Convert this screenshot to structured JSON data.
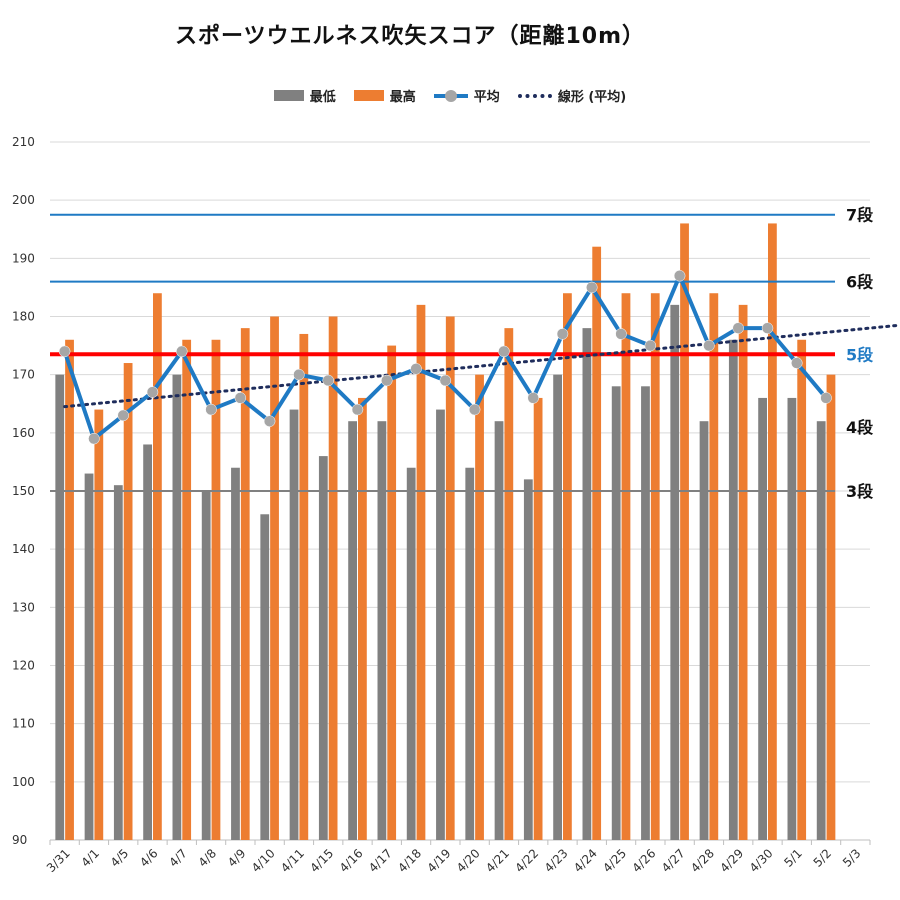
{
  "chart_data": {
    "type": "bar",
    "title": "スポーツウエルネス吹矢スコア（距離10m）",
    "categories": [
      "3/31",
      "4/1",
      "4/5",
      "4/6",
      "4/7",
      "4/8",
      "4/9",
      "4/10",
      "4/11",
      "4/15",
      "4/16",
      "4/17",
      "4/18",
      "4/19",
      "4/20",
      "4/21",
      "4/22",
      "4/23",
      "4/24",
      "4/25",
      "4/26",
      "4/27",
      "4/28",
      "4/29",
      "4/30",
      "5/1",
      "5/2",
      "5/3"
    ],
    "series": [
      {
        "name": "最低",
        "type": "bar",
        "color": "#808080",
        "values": [
          170,
          153,
          151,
          158,
          170,
          150,
          154,
          146,
          164,
          156,
          162,
          162,
          154,
          164,
          154,
          162,
          152,
          170,
          178,
          168,
          168,
          182,
          162,
          176,
          166,
          166,
          162,
          null
        ]
      },
      {
        "name": "最高",
        "type": "bar",
        "color": "#ed7d31",
        "values": [
          176,
          164,
          172,
          184,
          176,
          176,
          178,
          180,
          177,
          180,
          166,
          175,
          182,
          180,
          170,
          178,
          166,
          184,
          192,
          184,
          184,
          196,
          184,
          182,
          196,
          176,
          170,
          null
        ]
      },
      {
        "name": "平均",
        "type": "line",
        "color": "#1f7ac4",
        "marker_color": "#a6a6a6",
        "values": [
          174,
          159,
          163,
          167,
          174,
          164,
          166,
          162,
          170,
          169,
          164,
          169,
          171,
          169,
          164,
          174,
          166,
          177,
          185,
          177,
          175,
          187,
          175,
          178,
          178,
          172,
          166,
          null
        ]
      },
      {
        "name": "線形 (平均)",
        "type": "trendline",
        "color": "#1f2d5c",
        "style": "dotted",
        "from": [
          0,
          164.5
        ],
        "to": [
          28.5,
          178.5
        ]
      }
    ],
    "ylim": [
      90,
      210
    ],
    "yticks": [
      90,
      100,
      110,
      120,
      130,
      140,
      150,
      160,
      170,
      180,
      190,
      200,
      210
    ],
    "grid": true,
    "legend_position": "top",
    "reference_lines": [
      {
        "label": "7段",
        "value": 197.5,
        "color": "#1f7ac4",
        "label_color": "#111111",
        "weight": "thin"
      },
      {
        "label": "6段",
        "value": 186,
        "color": "#1f7ac4",
        "label_color": "#111111",
        "weight": "thin"
      },
      {
        "label": "5段",
        "value": 173.5,
        "color": "#ff0000",
        "label_color": "#1f7ac4",
        "weight": "thick"
      },
      {
        "label": "4段",
        "value": 161,
        "color": null,
        "label_color": "#111111",
        "weight": "none"
      },
      {
        "label": "3段",
        "value": 150,
        "color": "#808080",
        "label_color": "#111111",
        "weight": "thin"
      }
    ]
  }
}
